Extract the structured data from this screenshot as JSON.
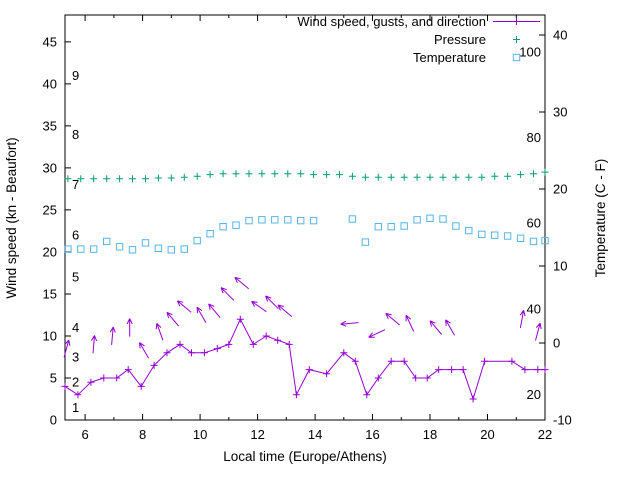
{
  "chart_data": {
    "type": "line",
    "title": "",
    "xlabel": "Local time (Europe/Athens)",
    "ylabel_left": "Wind speed (kn - Beaufort)",
    "ylabel_right": "Temperature (C - F)",
    "x_range": [
      5.3,
      22
    ],
    "y_left_range": [
      0,
      48.2
    ],
    "y_right_range": [
      -10,
      42.6
    ],
    "x_ticks_major": [
      6,
      8,
      10,
      12,
      14,
      16,
      18,
      20,
      22
    ],
    "x_ticks_minor": [
      7,
      9,
      11,
      13,
      15,
      17,
      19,
      21
    ],
    "y_left_ticks": [
      0,
      5,
      10,
      15,
      20,
      25,
      30,
      35,
      40,
      45
    ],
    "y_right_ticks": [
      -10,
      0,
      10,
      20,
      30,
      40
    ],
    "beaufort_scale": [
      {
        "label": "1",
        "kn": 1.5
      },
      {
        "label": "2",
        "kn": 4.5
      },
      {
        "label": "3",
        "kn": 7.5
      },
      {
        "label": "4",
        "kn": 11
      },
      {
        "label": "5",
        "kn": 17
      },
      {
        "label": "6",
        "kn": 22
      },
      {
        "label": "7",
        "kn": 28
      },
      {
        "label": "8",
        "kn": 34
      },
      {
        "label": "9",
        "kn": 41
      }
    ],
    "fahrenheit_scale": [
      {
        "label": "20",
        "c": -6.7
      },
      {
        "label": "40",
        "c": 4.4
      },
      {
        "label": "60",
        "c": 15.6
      },
      {
        "label": "80",
        "c": 26.7
      },
      {
        "label": "100",
        "c": 37.8
      }
    ],
    "series": [
      {
        "name": "Wind speed, gusts, and direction",
        "type": "linespoints",
        "marker": "plus",
        "color": "#9400d3",
        "axis": "left",
        "x": [
          5.3,
          5.75,
          6.2,
          6.65,
          7.1,
          7.5,
          7.95,
          8.4,
          8.85,
          9.3,
          9.7,
          10.15,
          10.6,
          11.0,
          11.4,
          11.85,
          12.3,
          12.7,
          13.1,
          13.35,
          13.8,
          14.4,
          15.0,
          15.4,
          15.8,
          16.2,
          16.65,
          17.1,
          17.5,
          17.9,
          18.3,
          18.75,
          19.15,
          19.5,
          19.9,
          20.85,
          21.3,
          21.75,
          22.0
        ],
        "y": [
          4,
          3,
          4.5,
          5,
          5,
          6,
          4,
          6.5,
          8,
          9,
          8,
          8,
          8.5,
          9,
          12,
          9,
          10,
          9.5,
          9,
          3,
          6,
          5.5,
          8,
          7,
          3,
          5,
          7,
          7,
          5,
          5,
          6,
          6,
          6,
          2.5,
          7,
          7,
          6,
          6,
          6
        ]
      },
      {
        "name": "",
        "type": "vectors",
        "color": "#9400d3",
        "axis": "left",
        "points": [
          {
            "x": 5.35,
            "y": 8.5,
            "angle": 75
          },
          {
            "x": 6.3,
            "y": 9,
            "angle": 85
          },
          {
            "x": 6.95,
            "y": 10,
            "angle": 85
          },
          {
            "x": 7.55,
            "y": 11,
            "angle": 90
          },
          {
            "x": 8.05,
            "y": 8.3,
            "angle": 120
          },
          {
            "x": 8.6,
            "y": 10.5,
            "angle": 110
          },
          {
            "x": 9.05,
            "y": 12,
            "angle": 130
          },
          {
            "x": 9.45,
            "y": 13.5,
            "angle": 140
          },
          {
            "x": 10.05,
            "y": 12.5,
            "angle": 120
          },
          {
            "x": 10.5,
            "y": 13,
            "angle": 130
          },
          {
            "x": 10.95,
            "y": 15,
            "angle": 135
          },
          {
            "x": 11.45,
            "y": 16.3,
            "angle": 140
          },
          {
            "x": 12.05,
            "y": 13.5,
            "angle": 145
          },
          {
            "x": 12.5,
            "y": 14,
            "angle": 135
          },
          {
            "x": 12.95,
            "y": 13,
            "angle": 140
          },
          {
            "x": 15.2,
            "y": 11.5,
            "angle": 185
          },
          {
            "x": 16.15,
            "y": 10.3,
            "angle": 205
          },
          {
            "x": 16.7,
            "y": 12,
            "angle": 140
          },
          {
            "x": 17.3,
            "y": 11.5,
            "angle": 115
          },
          {
            "x": 18.2,
            "y": 11,
            "angle": 130
          },
          {
            "x": 18.7,
            "y": 11,
            "angle": 120
          },
          {
            "x": 21.2,
            "y": 12,
            "angle": 80
          },
          {
            "x": 21.75,
            "y": 10.5,
            "angle": 75
          }
        ]
      },
      {
        "name": "Pressure",
        "type": "points",
        "marker": "plus",
        "color": "#009e73",
        "axis": "left",
        "x": [
          5.4,
          5.85,
          6.3,
          6.75,
          7.2,
          7.65,
          8.1,
          8.55,
          9.0,
          9.45,
          9.9,
          10.35,
          10.8,
          11.25,
          11.7,
          12.15,
          12.6,
          13.05,
          13.5,
          13.95,
          14.4,
          14.85,
          15.3,
          15.75,
          16.2,
          16.65,
          17.1,
          17.55,
          18.0,
          18.45,
          18.9,
          19.35,
          19.8,
          20.25,
          20.7,
          21.15,
          21.6,
          22.0
        ],
        "y": [
          28.7,
          28.7,
          28.7,
          28.7,
          28.7,
          28.7,
          28.7,
          28.8,
          28.8,
          28.9,
          29.0,
          29.2,
          29.3,
          29.3,
          29.3,
          29.3,
          29.3,
          29.3,
          29.3,
          29.2,
          29.2,
          29.2,
          29.0,
          28.9,
          28.9,
          28.9,
          28.9,
          28.9,
          28.9,
          28.9,
          28.9,
          28.9,
          28.9,
          29.0,
          29.0,
          29.2,
          29.3,
          29.5
        ]
      },
      {
        "name": "Temperature",
        "type": "points",
        "marker": "square",
        "color": "#56b4e9",
        "axis": "right",
        "x": [
          5.4,
          5.85,
          6.3,
          6.75,
          7.2,
          7.65,
          8.1,
          8.55,
          9.0,
          9.45,
          9.9,
          10.35,
          10.8,
          11.25,
          11.7,
          12.15,
          12.6,
          13.05,
          13.5,
          13.95,
          15.3,
          15.75,
          16.2,
          16.65,
          17.1,
          17.55,
          18.0,
          18.45,
          18.9,
          19.35,
          19.8,
          20.25,
          20.7,
          21.15,
          21.6,
          22.0
        ],
        "y": [
          12.2,
          12.2,
          12.2,
          13.2,
          12.5,
          12.1,
          13.0,
          12.3,
          12.1,
          12.2,
          13.3,
          14.2,
          15.1,
          15.3,
          15.9,
          16.0,
          16.0,
          16.0,
          15.9,
          15.9,
          16.1,
          13.1,
          15.1,
          15.1,
          15.2,
          16.0,
          16.2,
          16.1,
          15.2,
          14.6,
          14.1,
          14.0,
          13.9,
          13.6,
          13.2,
          13.3
        ]
      }
    ],
    "legend_position": "top-right-inside",
    "grid": false,
    "background_color": "#ffffff",
    "axis_color": "#000000"
  }
}
